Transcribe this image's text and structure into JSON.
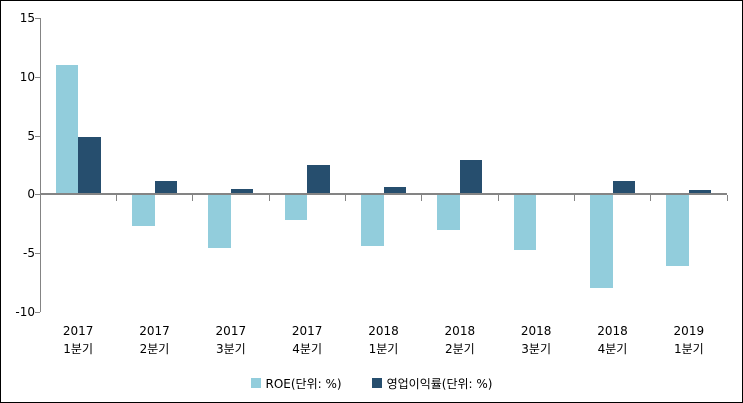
{
  "chart_data": {
    "type": "bar",
    "categories": [
      {
        "line1": "2017",
        "line2": "1분기"
      },
      {
        "line1": "2017",
        "line2": "2분기"
      },
      {
        "line1": "2017",
        "line2": "3분기"
      },
      {
        "line1": "2017",
        "line2": "4분기"
      },
      {
        "line1": "2018",
        "line2": "1분기"
      },
      {
        "line1": "2018",
        "line2": "2분기"
      },
      {
        "line1": "2018",
        "line2": "3분기"
      },
      {
        "line1": "2018",
        "line2": "4분기"
      },
      {
        "line1": "2019",
        "line2": "1분기"
      }
    ],
    "series": [
      {
        "id": "roe",
        "name": "ROE(단위: %)",
        "color": "#92CDDC",
        "values": [
          11.0,
          -2.7,
          -4.6,
          -2.2,
          -4.4,
          -3.0,
          -4.7,
          -8.0,
          -6.1
        ]
      },
      {
        "id": "operating-margin",
        "name": "영업이익률(단위: %)",
        "color": "#264E6E",
        "values": [
          4.9,
          1.1,
          0.5,
          2.5,
          0.6,
          2.9,
          0.1,
          1.1,
          0.4
        ]
      }
    ],
    "ylim": [
      -10,
      15
    ],
    "yticks": [
      15,
      10,
      5,
      0,
      -5,
      -10
    ],
    "grid": false,
    "legend_position": "bottom"
  },
  "colors": {
    "axis": "#848484",
    "text": "#000000",
    "border": "#000000",
    "background": "#FFFFFF"
  }
}
